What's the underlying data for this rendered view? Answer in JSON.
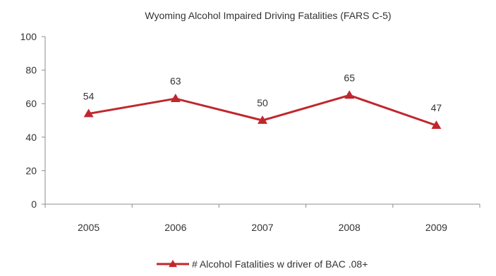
{
  "chart_data": {
    "type": "line",
    "title": "Wyoming Alcohol  Impaired Driving  Fatalities (FARS C-5)",
    "xlabel": "",
    "ylabel": "",
    "categories": [
      "2005",
      "2006",
      "2007",
      "2008",
      "2009"
    ],
    "series": [
      {
        "name": "# Alcohol Fatalities  w driver of BAC .08+",
        "values": [
          54,
          63,
          50,
          65,
          47
        ],
        "color": "#c0272d",
        "marker": "triangle"
      }
    ],
    "ylim": [
      0,
      100
    ],
    "yticks": [
      0,
      20,
      40,
      60,
      80,
      100
    ],
    "data_labels": true,
    "grid": false,
    "legend_position": "bottom"
  }
}
